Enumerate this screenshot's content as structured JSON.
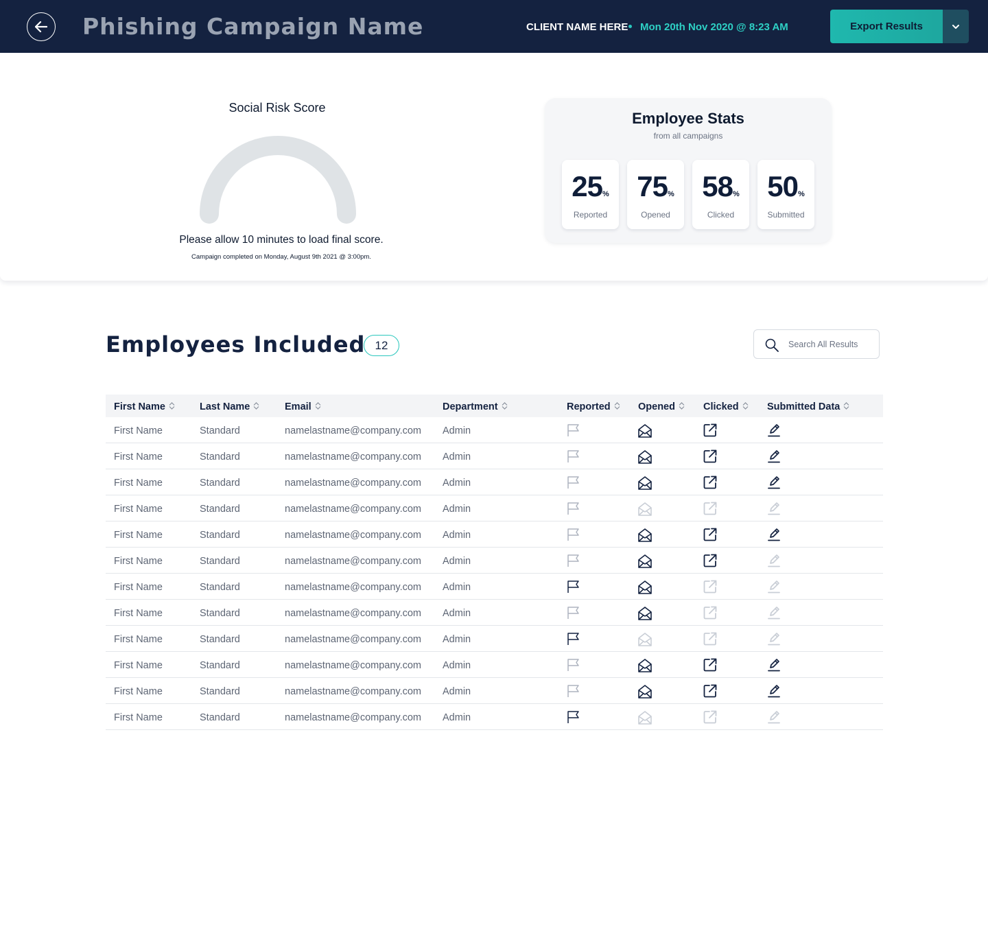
{
  "header": {
    "campaign_title": "Phishing Campaign Name",
    "client_name": "CLIENT NAME HERE",
    "datetime": "Mon 20th Nov 2020 @ 8:23 AM",
    "export_label": "Export Results",
    "back_icon": "arrow-left-icon",
    "caret_icon": "chevron-down-icon"
  },
  "risk": {
    "title": "Social Risk Score",
    "note": "Please allow 10 minutes to load final score.",
    "sub": "Campaign completed on Monday, August 9th 2021 @ 3:00pm."
  },
  "stats": {
    "title": "Employee Stats",
    "subtitle": "from all campaigns",
    "items": [
      {
        "value": "25",
        "unit": "%",
        "label": "Reported"
      },
      {
        "value": "75",
        "unit": "%",
        "label": "Opened"
      },
      {
        "value": "58",
        "unit": "%",
        "label": "Clicked"
      },
      {
        "value": "50",
        "unit": "%",
        "label": "Submitted"
      }
    ]
  },
  "employees": {
    "title": "Employees Included",
    "count": "12",
    "search_placeholder": "Search All Results",
    "columns": [
      "First Name",
      "Last Name",
      "Email",
      "Department",
      "Reported",
      "Opened",
      "Clicked",
      "Submitted Data"
    ],
    "rows": [
      {
        "first": "First Name",
        "last": "Standard",
        "email": "namelastname@company.com",
        "dept": "Admin",
        "reported": false,
        "opened": true,
        "clicked": true,
        "submitted": true
      },
      {
        "first": "First Name",
        "last": "Standard",
        "email": "namelastname@company.com",
        "dept": "Admin",
        "reported": false,
        "opened": true,
        "clicked": true,
        "submitted": true
      },
      {
        "first": "First Name",
        "last": "Standard",
        "email": "namelastname@company.com",
        "dept": "Admin",
        "reported": false,
        "opened": true,
        "clicked": true,
        "submitted": true
      },
      {
        "first": "First Name",
        "last": "Standard",
        "email": "namelastname@company.com",
        "dept": "Admin",
        "reported": false,
        "opened": false,
        "clicked": false,
        "submitted": false
      },
      {
        "first": "First Name",
        "last": "Standard",
        "email": "namelastname@company.com",
        "dept": "Admin",
        "reported": false,
        "opened": true,
        "clicked": true,
        "submitted": true
      },
      {
        "first": "First Name",
        "last": "Standard",
        "email": "namelastname@company.com",
        "dept": "Admin",
        "reported": false,
        "opened": true,
        "clicked": true,
        "submitted": false
      },
      {
        "first": "First Name",
        "last": "Standard",
        "email": "namelastname@company.com",
        "dept": "Admin",
        "reported": true,
        "opened": true,
        "clicked": false,
        "submitted": false
      },
      {
        "first": "First Name",
        "last": "Standard",
        "email": "namelastname@company.com",
        "dept": "Admin",
        "reported": false,
        "opened": true,
        "clicked": false,
        "submitted": false
      },
      {
        "first": "First Name",
        "last": "Standard",
        "email": "namelastname@company.com",
        "dept": "Admin",
        "reported": true,
        "opened": false,
        "clicked": false,
        "submitted": false
      },
      {
        "first": "First Name",
        "last": "Standard",
        "email": "namelastname@company.com",
        "dept": "Admin",
        "reported": false,
        "opened": true,
        "clicked": true,
        "submitted": true
      },
      {
        "first": "First Name",
        "last": "Standard",
        "email": "namelastname@company.com",
        "dept": "Admin",
        "reported": false,
        "opened": true,
        "clicked": true,
        "submitted": true
      },
      {
        "first": "First Name",
        "last": "Standard",
        "email": "namelastname@company.com",
        "dept": "Admin",
        "reported": true,
        "opened": false,
        "clicked": false,
        "submitted": false
      }
    ]
  },
  "colors": {
    "navy": "#142240",
    "teal": "#2bc7bd",
    "icon_active": "#142240",
    "icon_inactive": "#c9ced6",
    "flag_inactive": "#aeb4bf"
  },
  "icons": {
    "reported": "flag-icon",
    "opened": "envelope-open-icon",
    "clicked": "external-link-icon",
    "submitted": "pencil-icon",
    "sort": "sort-icon",
    "search": "search-icon"
  }
}
